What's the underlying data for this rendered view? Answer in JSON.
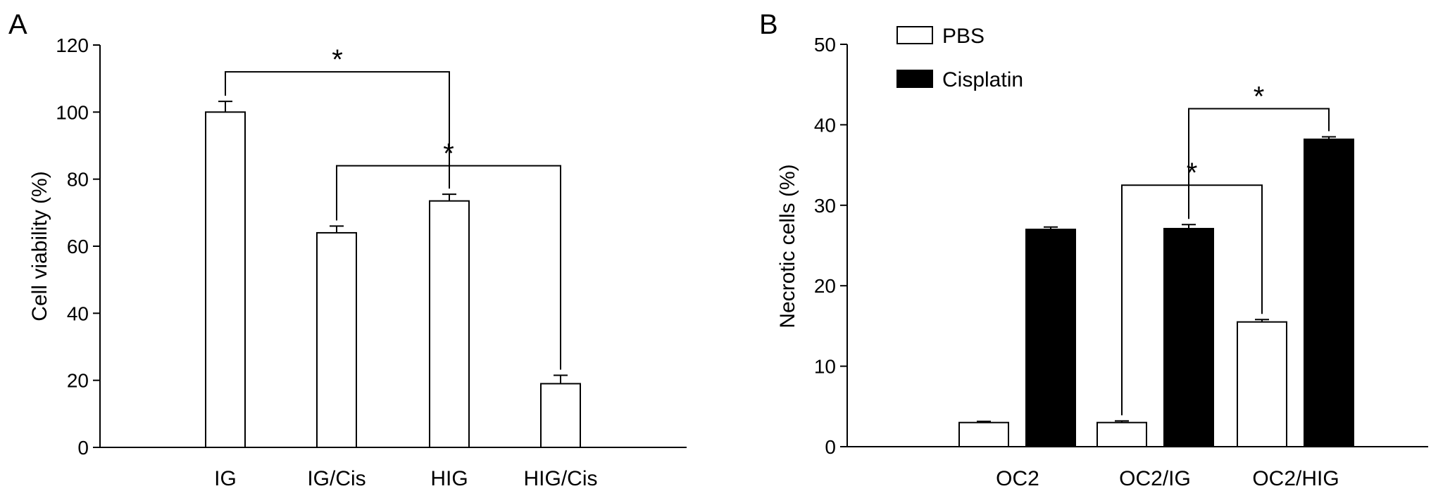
{
  "chart_data": [
    {
      "type": "bar",
      "panel_label": "A",
      "title": "",
      "xlabel": "",
      "ylabel": "Cell viability (%)",
      "ylim": [
        0,
        120
      ],
      "yticks": [
        0,
        20,
        40,
        60,
        80,
        100,
        120
      ],
      "categories": [
        "IG",
        "IG/Cis",
        "HIG",
        "HIG/Cis"
      ],
      "series": [
        {
          "values": [
            100,
            64,
            73.5,
            19
          ],
          "errors": [
            3.2,
            2,
            2,
            2.5
          ],
          "fill": "#ffffff"
        }
      ],
      "significance": [
        {
          "from": 0,
          "to": 2,
          "label": "*",
          "y": 112
        },
        {
          "from": 1,
          "to": 3,
          "label": "*",
          "y": 84
        }
      ],
      "legend": "none",
      "grid": false
    },
    {
      "type": "bar",
      "panel_label": "B",
      "title": "",
      "xlabel": "",
      "ylabel": "Necrotic cells (%)",
      "ylim": [
        0,
        50
      ],
      "yticks": [
        0,
        10,
        20,
        30,
        40,
        50
      ],
      "categories": [
        "OC2",
        "OC2/IG",
        "OC2/HIG"
      ],
      "series": [
        {
          "name": "PBS",
          "values": [
            3,
            3,
            15.5
          ],
          "errors": [
            0.15,
            0.2,
            0.3
          ],
          "fill": "#ffffff"
        },
        {
          "name": "Cisplatin",
          "values": [
            27,
            27.1,
            38.2
          ],
          "errors": [
            0.3,
            0.5,
            0.3
          ],
          "fill": "#000000"
        }
      ],
      "significance": [
        {
          "from": [
            1,
            0
          ],
          "to": [
            2,
            0
          ],
          "label": "*",
          "y": 32.5
        },
        {
          "from": [
            1,
            1
          ],
          "to": [
            2,
            1
          ],
          "label": "*",
          "y": 42
        }
      ],
      "legend": "top-left",
      "grid": false
    }
  ]
}
